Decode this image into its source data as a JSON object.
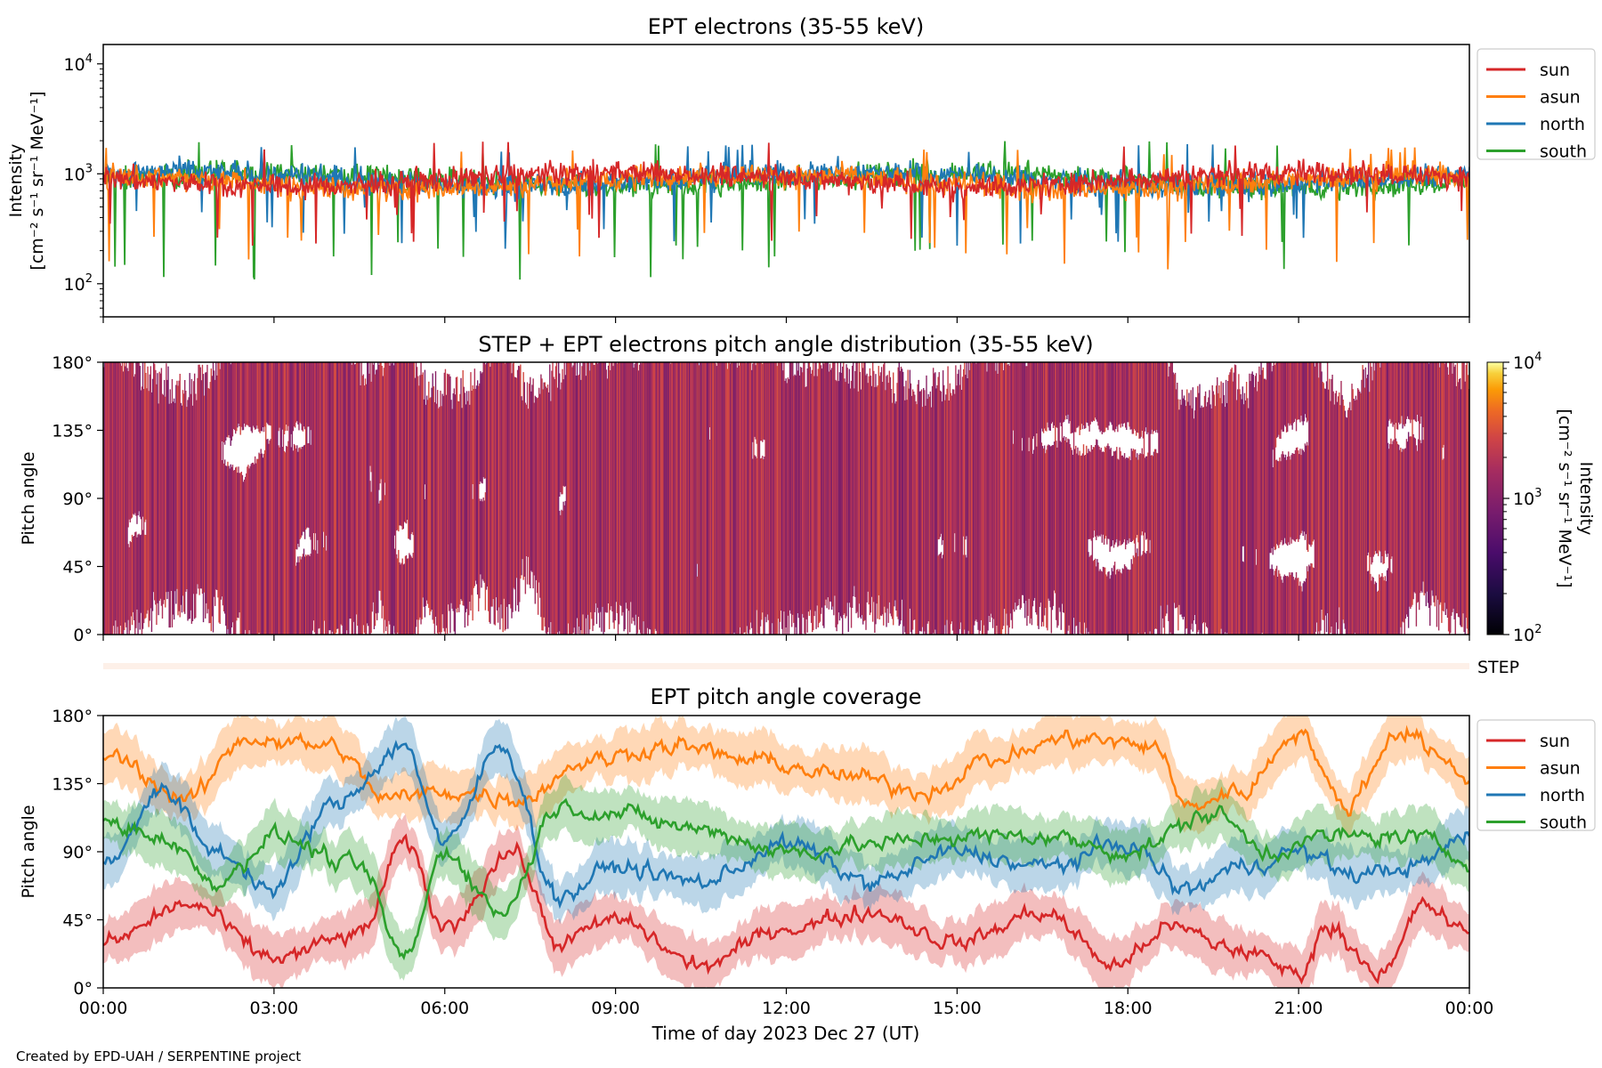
{
  "footer": {
    "credit": "Created by EPD-UAH / SERPENTINE project"
  },
  "colors": {
    "sun": "#d62728",
    "asun": "#ff7f0e",
    "north": "#1f77b4",
    "south": "#2ca02c"
  },
  "chart_data": [
    {
      "type": "line",
      "title": "EPT electrons (35-55 keV)",
      "ylabel": "Intensity",
      "ylabel_units": "[cm⁻² s⁻¹ sr⁻¹ MeV⁻¹]",
      "yscale": "log",
      "ylim": [
        50,
        15000
      ],
      "yticks": [
        {
          "value": 100,
          "base": "10",
          "exp": "2"
        },
        {
          "value": 1000,
          "base": "10",
          "exp": "3"
        },
        {
          "value": 10000,
          "base": "10",
          "exp": "4"
        }
      ],
      "xlim_hours": [
        0,
        24
      ],
      "legend": "outside-right",
      "series": [
        {
          "name": "sun",
          "typical": 900,
          "range": [
            200,
            2000
          ]
        },
        {
          "name": "asun",
          "typical": 850,
          "range": [
            130,
            1800
          ]
        },
        {
          "name": "north",
          "typical": 900,
          "range": [
            200,
            1900
          ]
        },
        {
          "name": "south",
          "typical": 880,
          "range": [
            100,
            2000
          ]
        }
      ]
    },
    {
      "type": "heatmap",
      "title": "STEP + EPT electrons pitch angle distribution (35-55 keV)",
      "ylabel": "Pitch angle",
      "ylim": [
        0,
        180
      ],
      "yticks": [
        "0°",
        "45°",
        "90°",
        "135°",
        "180°"
      ],
      "colorbar": {
        "label": "Intensity",
        "units": "[cm⁻² s⁻¹ sr⁻¹ MeV⁻¹]",
        "scale": "log",
        "range": [
          100,
          10000
        ],
        "ticks": [
          {
            "base": "10",
            "exp": "2"
          },
          {
            "base": "10",
            "exp": "3"
          },
          {
            "base": "10",
            "exp": "4"
          }
        ],
        "cmap": "inferno"
      },
      "step_label": "STEP"
    },
    {
      "type": "line",
      "title": "EPT pitch angle coverage",
      "ylabel": "Pitch angle",
      "ylim": [
        0,
        180
      ],
      "yticks": [
        "0°",
        "45°",
        "90°",
        "135°",
        "180°"
      ],
      "xlabel": "Time of day 2023 Dec 27 (UT)",
      "xticks": [
        "00:00",
        "03:00",
        "06:00",
        "09:00",
        "12:00",
        "15:00",
        "18:00",
        "21:00",
        "00:00"
      ],
      "legend": "outside-right",
      "series": [
        {
          "name": "sun",
          "key_points_hours_deg": [
            [
              0,
              30
            ],
            [
              1.5,
              55
            ],
            [
              3,
              20
            ],
            [
              4.5,
              35
            ],
            [
              5.3,
              95
            ],
            [
              6,
              40
            ],
            [
              7.2,
              90
            ],
            [
              8,
              30
            ],
            [
              9,
              45
            ],
            [
              10.5,
              15
            ],
            [
              12,
              40
            ],
            [
              13.5,
              50
            ],
            [
              15,
              30
            ],
            [
              16.5,
              50
            ],
            [
              17.8,
              15
            ],
            [
              18.7,
              40
            ],
            [
              20,
              25
            ],
            [
              21,
              10
            ],
            [
              21.5,
              40
            ],
            [
              22.5,
              10
            ],
            [
              23.2,
              55
            ],
            [
              24,
              35
            ]
          ]
        },
        {
          "name": "asun",
          "key_points_hours_deg": [
            [
              0,
              155
            ],
            [
              1.5,
              125
            ],
            [
              2.5,
              165
            ],
            [
              4,
              160
            ],
            [
              5,
              125
            ],
            [
              6,
              130
            ],
            [
              7.3,
              125
            ],
            [
              8.5,
              150
            ],
            [
              10,
              160
            ],
            [
              11.5,
              150
            ],
            [
              13,
              140
            ],
            [
              14.5,
              130
            ],
            [
              15.5,
              150
            ],
            [
              17,
              165
            ],
            [
              18.5,
              160
            ],
            [
              19,
              120
            ],
            [
              20,
              130
            ],
            [
              21,
              170
            ],
            [
              21.8,
              120
            ],
            [
              22.8,
              170
            ],
            [
              24,
              140
            ]
          ]
        },
        {
          "name": "north",
          "key_points_hours_deg": [
            [
              0,
              80
            ],
            [
              1,
              130
            ],
            [
              2,
              90
            ],
            [
              3,
              65
            ],
            [
              4,
              120
            ],
            [
              5.3,
              160
            ],
            [
              6,
              95
            ],
            [
              7,
              160
            ],
            [
              8,
              60
            ],
            [
              9,
              80
            ],
            [
              10.5,
              70
            ],
            [
              12,
              95
            ],
            [
              13.5,
              70
            ],
            [
              15,
              90
            ],
            [
              16.5,
              80
            ],
            [
              18,
              95
            ],
            [
              19,
              65
            ],
            [
              20,
              80
            ],
            [
              21,
              90
            ],
            [
              22,
              75
            ],
            [
              23,
              80
            ],
            [
              24,
              100
            ]
          ]
        },
        {
          "name": "south",
          "key_points_hours_deg": [
            [
              0,
              110
            ],
            [
              1,
              100
            ],
            [
              2,
              70
            ],
            [
              3,
              100
            ],
            [
              4.5,
              80
            ],
            [
              5.3,
              20
            ],
            [
              6,
              90
            ],
            [
              7,
              50
            ],
            [
              8,
              120
            ],
            [
              9,
              115
            ],
            [
              10.5,
              105
            ],
            [
              12,
              90
            ],
            [
              13.5,
              95
            ],
            [
              15,
              100
            ],
            [
              16.5,
              100
            ],
            [
              18,
              90
            ],
            [
              19.5,
              115
            ],
            [
              20.5,
              90
            ],
            [
              21.5,
              100
            ],
            [
              23,
              100
            ],
            [
              24,
              85
            ]
          ]
        }
      ]
    }
  ]
}
